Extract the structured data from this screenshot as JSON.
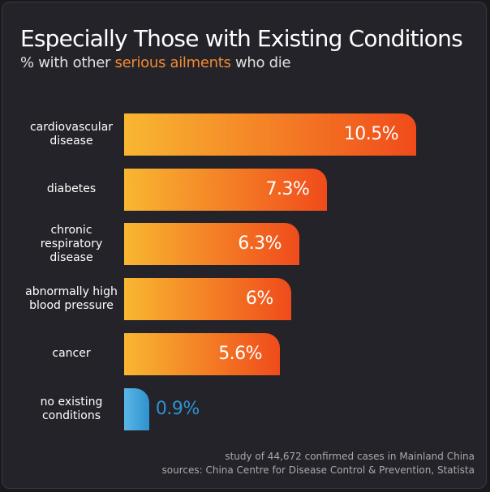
{
  "chart_data": {
    "type": "bar",
    "orientation": "horizontal",
    "title": "Especially Those with Existing Conditions",
    "subtitle_parts": [
      "% with other ",
      "serious ailments",
      " who die"
    ],
    "subtitle_highlight_index": 1,
    "highlight_color": "#f08a33",
    "categories": [
      "cardiovascular disease",
      "diabetes",
      "chronic respiratory disease",
      "abnormally high blood pressure",
      "cancer",
      "no existing conditions"
    ],
    "values": [
      10.5,
      7.3,
      6.3,
      6,
      5.6,
      0.9
    ],
    "value_labels": [
      "10.5%",
      "7.3%",
      "6.3%",
      "6%",
      "5.6%",
      "0.9%"
    ],
    "colors": [
      [
        "#f8b731",
        "#f04b1b"
      ],
      [
        "#f8b731",
        "#f04b1b"
      ],
      [
        "#f8b731",
        "#f04b1b"
      ],
      [
        "#f8b731",
        "#f04b1b"
      ],
      [
        "#f8b731",
        "#f04b1b"
      ],
      [
        "#5bb6e6",
        "#2e92cf"
      ]
    ],
    "notes": [
      "study of 44,672 confirmed cases in Mainland China",
      "sources: China Centre for Disease Control & Prevention, Statista"
    ]
  }
}
